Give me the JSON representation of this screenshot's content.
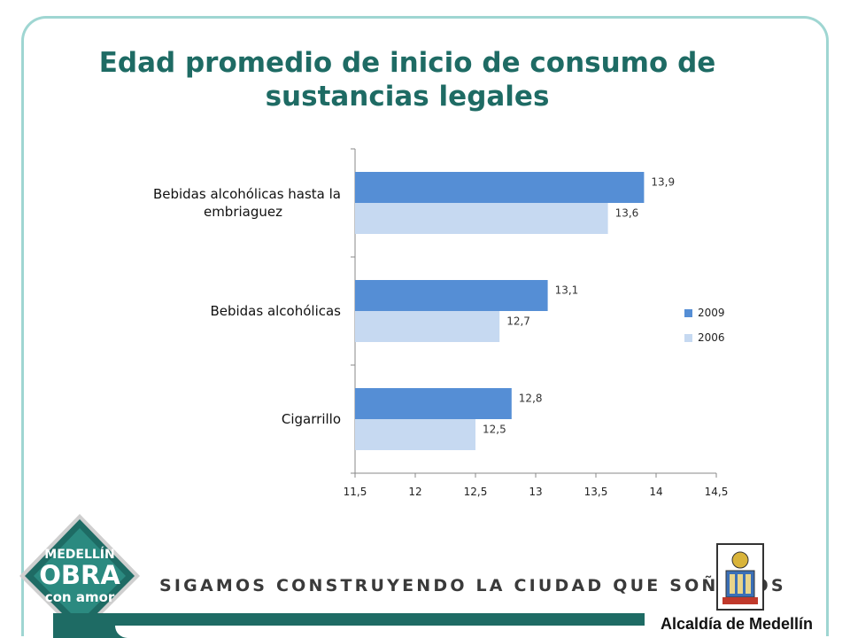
{
  "slide": {
    "title": "Edad promedio de inicio de consumo de sustancias legales",
    "slogan": "SIGAMOS CONSTRUYENDO LA CIUDAD QUE SOÑAMOS",
    "logo": {
      "line1": "MEDELLÍN",
      "line2": "OBRA",
      "line3": "con amor"
    },
    "institution": "Alcaldía de Medellín"
  },
  "colors": {
    "s2009": "#558ed5",
    "s2006": "#c6d9f1",
    "title": "#1e6b64",
    "frame": "#9fd6d2",
    "footer": "#1e6b64"
  },
  "chart_data": {
    "type": "bar",
    "orientation": "horizontal",
    "categories": [
      "Bebidas alcohólicas hasta la embriaguez",
      "Bebidas alcohólicas",
      "Cigarrillo"
    ],
    "category_lines": [
      [
        "Bebidas alcohólicas hasta la",
        "embriaguez"
      ],
      [
        "Bebidas alcohólicas"
      ],
      [
        "Cigarrillo"
      ]
    ],
    "series": [
      {
        "name": "2009",
        "values": [
          13.9,
          13.1,
          12.8
        ],
        "labels": [
          "13,9",
          "13,1",
          "12,8"
        ]
      },
      {
        "name": "2006",
        "values": [
          13.6,
          12.7,
          12.5
        ],
        "labels": [
          "13,6",
          "12,7",
          "12,5"
        ]
      }
    ],
    "xlim": [
      11.5,
      14.5
    ],
    "xticks": [
      11.5,
      12,
      12.5,
      13,
      13.5,
      14,
      14.5
    ],
    "xtick_labels": [
      "11,5",
      "12",
      "12,5",
      "13",
      "13,5",
      "14",
      "14,5"
    ],
    "grid": false,
    "legend": "right"
  }
}
